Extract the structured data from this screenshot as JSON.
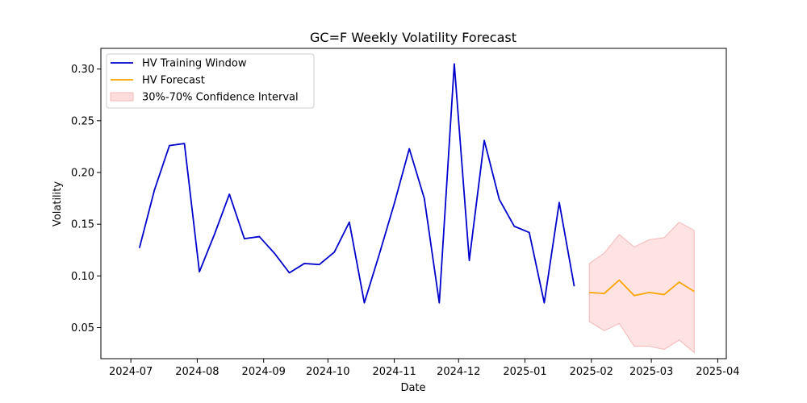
{
  "chart_data": {
    "type": "line",
    "title": "GC=F Weekly Volatility Forecast",
    "xlabel": "Date",
    "ylabel": "Volatility",
    "xlim": [
      "2024-06-17",
      "2025-04-05"
    ],
    "ylim": [
      0.02,
      0.32
    ],
    "x_ticks": [
      "2024-07",
      "2024-08",
      "2024-09",
      "2024-10",
      "2024-11",
      "2024-12",
      "2025-01",
      "2025-02",
      "2025-03",
      "2025-04"
    ],
    "x_tick_dates": [
      "2024-07-01",
      "2024-08-01",
      "2024-09-01",
      "2024-10-01",
      "2024-11-01",
      "2024-12-01",
      "2025-01-01",
      "2025-02-01",
      "2025-03-01",
      "2025-04-01"
    ],
    "y_ticks": [
      "0.05",
      "0.10",
      "0.15",
      "0.20",
      "0.25",
      "0.30"
    ],
    "y_tick_values": [
      0.05,
      0.1,
      0.15,
      0.2,
      0.25,
      0.3
    ],
    "grid": false,
    "legend_position": "upper-left",
    "series": [
      {
        "name": "HV Training Window",
        "color": "#0000cd",
        "x": [
          "2024-07-05",
          "2024-07-12",
          "2024-07-19",
          "2024-07-26",
          "2024-08-02",
          "2024-08-09",
          "2024-08-16",
          "2024-08-23",
          "2024-08-30",
          "2024-09-06",
          "2024-09-13",
          "2024-09-20",
          "2024-09-27",
          "2024-10-04",
          "2024-10-11",
          "2024-10-18",
          "2024-10-25",
          "2024-11-01",
          "2024-11-08",
          "2024-11-15",
          "2024-11-22",
          "2024-11-29",
          "2024-12-06",
          "2024-12-13",
          "2024-12-20",
          "2024-12-27",
          "2025-01-03",
          "2025-01-10",
          "2025-01-17",
          "2025-01-24"
        ],
        "y": [
          0.127,
          0.183,
          0.226,
          0.228,
          0.104,
          0.14,
          0.179,
          0.136,
          0.138,
          0.122,
          0.103,
          0.112,
          0.111,
          0.123,
          0.152,
          0.074,
          0.121,
          0.17,
          0.223,
          0.175,
          0.074,
          0.305,
          0.115,
          0.231,
          0.174,
          0.148,
          0.142,
          0.074,
          0.171,
          0.09
        ]
      },
      {
        "name": "HV Forecast",
        "color": "#ffa500",
        "x": [
          "2025-01-31",
          "2025-02-07",
          "2025-02-14",
          "2025-02-21",
          "2025-02-28",
          "2025-03-07",
          "2025-03-14",
          "2025-03-21"
        ],
        "y": [
          0.084,
          0.083,
          0.096,
          0.081,
          0.084,
          0.082,
          0.094,
          0.085
        ]
      }
    ],
    "band": {
      "name": "30%-70% Confidence Interval",
      "color": "#ffdcdc",
      "x": [
        "2025-01-31",
        "2025-02-07",
        "2025-02-14",
        "2025-02-21",
        "2025-02-28",
        "2025-03-07",
        "2025-03-14",
        "2025-03-21"
      ],
      "lower": [
        0.056,
        0.047,
        0.054,
        0.032,
        0.032,
        0.029,
        0.038,
        0.026
      ],
      "upper": [
        0.112,
        0.122,
        0.14,
        0.128,
        0.135,
        0.137,
        0.152,
        0.144
      ]
    }
  }
}
